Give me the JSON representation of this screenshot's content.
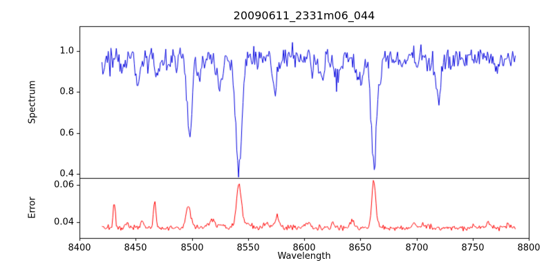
{
  "figure": {
    "title": "20090611_2331m06_044",
    "xlabel": "Wavelength",
    "xlim": [
      8400,
      8800
    ],
    "xticks": [
      8400,
      8450,
      8500,
      8550,
      8600,
      8650,
      8700,
      8750,
      8800
    ],
    "xtick_labels": [
      "8400",
      "8450",
      "8500",
      "8550",
      "8600",
      "8650",
      "8700",
      "8750",
      "8800"
    ],
    "background_color": "#ffffff",
    "frame_color": "#000000"
  },
  "chart_data": [
    {
      "type": "line",
      "name": "spectrum",
      "ylabel": "Spectrum",
      "color": "#0000dd",
      "x_start": 8420,
      "x_end": 8788,
      "x_step": 0.8,
      "ylim": [
        0.38,
        1.12
      ],
      "ytick_values": [
        0.4,
        0.6,
        0.8,
        1.0
      ],
      "ytick_labels": [
        "0.4",
        "0.6",
        "0.8",
        "1.0"
      ],
      "continuum_level": 0.965,
      "noise_std": 0.028,
      "absorption_lines": [
        {
          "center": 8498,
          "min_value": 0.57,
          "sigma": 2.0
        },
        {
          "center": 8542,
          "min_value": 0.42,
          "sigma": 2.6
        },
        {
          "center": 8662,
          "min_value": 0.45,
          "sigma": 2.4
        }
      ],
      "random_dips": {
        "count": 26,
        "amp_min": 0.03,
        "amp_max": 0.11
      },
      "seed": 20090611
    },
    {
      "type": "line",
      "name": "error",
      "ylabel": "Error",
      "color": "#ff0000",
      "x_start": 8420,
      "x_end": 8788,
      "x_step": 0.8,
      "ylim": [
        0.0315,
        0.0635
      ],
      "ytick_values": [
        0.04,
        0.06
      ],
      "ytick_labels": [
        "0.04",
        "0.06"
      ],
      "baseline_level": 0.037,
      "noise_std": 0.0007,
      "peaks": [
        {
          "center": 8431,
          "peak_value": 0.0505,
          "sigma": 1.0
        },
        {
          "center": 8467,
          "peak_value": 0.051,
          "sigma": 1.0
        },
        {
          "center": 8497,
          "peak_value": 0.0485,
          "sigma": 2.0
        },
        {
          "center": 8542,
          "peak_value": 0.058,
          "sigma": 2.2
        },
        {
          "center": 8662,
          "peak_value": 0.0615,
          "sigma": 1.8
        }
      ],
      "random_dips": {
        "count": 22,
        "amp_min": 0.0008,
        "amp_max": 0.0035
      },
      "seed": 2331
    }
  ]
}
